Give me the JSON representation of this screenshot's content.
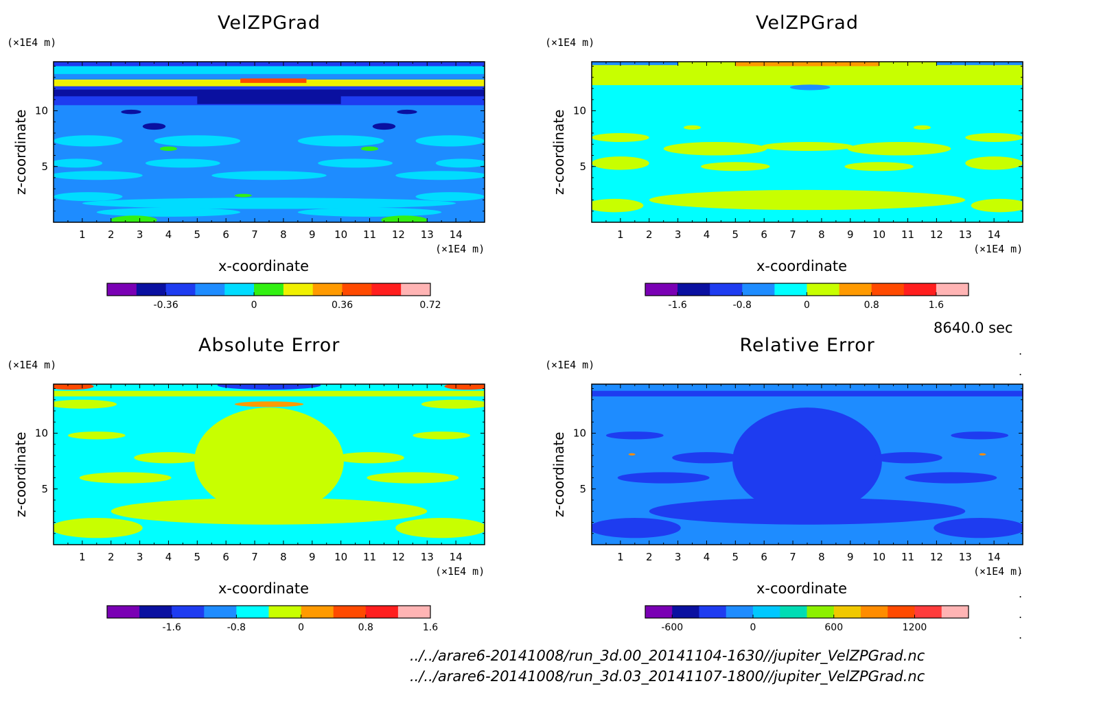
{
  "figure": {
    "time_label": "8640.0 sec",
    "files": [
      "../../arare6-20141008/run_3d.00_20141104-1630//jupiter_VelZPGrad.nc",
      "../../arare6-20141008/run_3d.03_20141107-1800//jupiter_VelZPGrad.nc"
    ]
  },
  "chart_data": [
    {
      "type": "heatmap",
      "title": "VelZPGrad",
      "xlabel": "x-coordinate",
      "ylabel": "z-coordinate",
      "xunit": "(×1E4 m)",
      "yunit": "(×1E4 m)",
      "xlim": [
        0,
        15
      ],
      "ylim": [
        0,
        14.4
      ],
      "xticks": [
        1,
        2,
        3,
        4,
        5,
        6,
        7,
        8,
        9,
        10,
        11,
        12,
        13,
        14
      ],
      "yticks": [
        5,
        10
      ],
      "colorbar": {
        "colors": [
          "#7a00b4",
          "#0a10a0",
          "#1e3cf0",
          "#1e8cff",
          "#00dcff",
          "#32f012",
          "#f0f000",
          "#ff9a00",
          "#ff4a00",
          "#ff1e1e",
          "#ffb4b4"
        ],
        "ticks": [
          {
            "label": "-0.36",
            "index": 1
          },
          {
            "label": "0",
            "index": 4
          },
          {
            "label": "0.36",
            "index": 7
          },
          {
            "label": "0.72",
            "index": 10
          }
        ]
      },
      "background_level": 3,
      "layers": [
        {
          "level": 2,
          "rects": [
            [
              0,
              10.5,
              15,
              12.3
            ]
          ]
        },
        {
          "level": 1,
          "rects": [
            [
              0,
              11.3,
              15,
              11.9
            ],
            [
              5,
              10.6,
              10,
              11.9
            ]
          ]
        },
        {
          "level": 1,
          "ellipses": [
            [
              2.7,
              9.9,
              0.35,
              0.2
            ],
            [
              12.3,
              9.9,
              0.35,
              0.2
            ],
            [
              3.5,
              8.6,
              0.4,
              0.3
            ],
            [
              11.5,
              8.6,
              0.4,
              0.3
            ]
          ]
        },
        {
          "level": 4,
          "rects": [
            [
              0,
              13.3,
              15,
              14.0
            ]
          ]
        },
        {
          "level": 6,
          "rects": [
            [
              0,
              12.2,
              15,
              12.8
            ]
          ]
        },
        {
          "level": 8,
          "rects": [
            [
              6.5,
              12.5,
              8.8,
              12.9
            ]
          ]
        },
        {
          "level": 2,
          "rects": [
            [
              0,
              14.0,
              15,
              14.4
            ]
          ]
        },
        {
          "level": 4,
          "ellipses": [
            [
              1.2,
              7.3,
              1.2,
              0.5
            ],
            [
              5.0,
              7.3,
              1.5,
              0.5
            ],
            [
              10.0,
              7.3,
              1.5,
              0.5
            ],
            [
              13.8,
              7.3,
              1.2,
              0.5
            ],
            [
              0.8,
              5.3,
              0.9,
              0.4
            ],
            [
              4.5,
              5.3,
              1.3,
              0.4
            ],
            [
              10.5,
              5.3,
              1.3,
              0.4
            ],
            [
              14.2,
              5.3,
              0.9,
              0.4
            ],
            [
              1.5,
              4.2,
              1.6,
              0.4
            ],
            [
              7.5,
              4.2,
              2.0,
              0.4
            ],
            [
              13.5,
              4.2,
              1.6,
              0.4
            ],
            [
              7.5,
              1.7,
              6.5,
              0.5
            ],
            [
              1.2,
              2.3,
              1.2,
              0.4
            ],
            [
              13.8,
              2.3,
              1.2,
              0.4
            ],
            [
              4.0,
              0.9,
              2.5,
              0.4
            ],
            [
              11.0,
              0.9,
              2.5,
              0.4
            ]
          ]
        },
        {
          "level": 5,
          "ellipses": [
            [
              2.8,
              0.2,
              0.8,
              0.4
            ],
            [
              12.2,
              0.2,
              0.8,
              0.4
            ],
            [
              4.0,
              6.6,
              0.3,
              0.2
            ],
            [
              11.0,
              6.6,
              0.3,
              0.2
            ],
            [
              6.6,
              2.4,
              0.3,
              0.15
            ]
          ]
        }
      ]
    },
    {
      "type": "heatmap",
      "title": "VelZPGrad",
      "xlabel": "x-coordinate",
      "ylabel": "z-coordinate",
      "xunit": "(×1E4 m)",
      "yunit": "(×1E4 m)",
      "xlim": [
        0,
        15
      ],
      "ylim": [
        0,
        14.4
      ],
      "xticks": [
        1,
        2,
        3,
        4,
        5,
        6,
        7,
        8,
        9,
        10,
        11,
        12,
        13,
        14
      ],
      "yticks": [
        5,
        10
      ],
      "colorbar": {
        "colors": [
          "#7a00b4",
          "#0a10a0",
          "#1e3cf0",
          "#1e8cff",
          "#00ffff",
          "#c8ff00",
          "#ff9a00",
          "#ff4a00",
          "#ff1e1e",
          "#ffb4b4"
        ],
        "ticks": [
          {
            "label": "-1.6",
            "index": 0
          },
          {
            "label": "-0.8",
            "index": 2
          },
          {
            "label": "0",
            "index": 4
          },
          {
            "label": "0.8",
            "index": 6
          },
          {
            "label": "1.6",
            "index": 8
          }
        ]
      },
      "background_level": 4,
      "layers": [
        {
          "level": 5,
          "rects": [
            [
              0,
              12.3,
              15,
              14.4
            ]
          ]
        },
        {
          "level": 6,
          "rects": [
            [
              5,
              14.0,
              10,
              14.4
            ]
          ]
        },
        {
          "level": 3,
          "rects": [
            [
              0,
              14.1,
              3,
              14.4
            ],
            [
              12,
              14.1,
              15,
              14.4
            ]
          ]
        },
        {
          "level": 3,
          "ellipses": [
            [
              7.6,
              12.1,
              0.7,
              0.25
            ]
          ]
        },
        {
          "level": 5,
          "ellipses": [
            [
              1.0,
              7.6,
              1.0,
              0.4
            ],
            [
              4.3,
              6.6,
              1.8,
              0.6
            ],
            [
              10.7,
              6.6,
              1.8,
              0.6
            ],
            [
              14.0,
              7.6,
              1.0,
              0.4
            ],
            [
              7.5,
              6.8,
              1.6,
              0.4
            ],
            [
              1.0,
              5.3,
              1.0,
              0.6
            ],
            [
              14.0,
              5.3,
              1.0,
              0.6
            ],
            [
              5.0,
              5.0,
              1.2,
              0.4
            ],
            [
              10.0,
              5.0,
              1.2,
              0.4
            ],
            [
              7.5,
              2.0,
              5.5,
              0.9
            ],
            [
              0.8,
              1.5,
              1.0,
              0.6
            ],
            [
              14.2,
              1.5,
              1.0,
              0.6
            ],
            [
              3.5,
              8.5,
              0.3,
              0.2
            ],
            [
              11.5,
              8.5,
              0.3,
              0.2
            ]
          ]
        }
      ]
    },
    {
      "type": "heatmap",
      "title": "Absolute Error",
      "xlabel": "x-coordinate",
      "ylabel": "z-coordinate",
      "xunit": "(×1E4 m)",
      "yunit": "(×1E4 m)",
      "xlim": [
        0,
        15
      ],
      "ylim": [
        0,
        14.4
      ],
      "xticks": [
        1,
        2,
        3,
        4,
        5,
        6,
        7,
        8,
        9,
        10,
        11,
        12,
        13,
        14
      ],
      "yticks": [
        5,
        10
      ],
      "colorbar": {
        "colors": [
          "#7a00b4",
          "#0a10a0",
          "#1e3cf0",
          "#1e8cff",
          "#00ffff",
          "#c8ff00",
          "#ff9a00",
          "#ff4a00",
          "#ff1e1e",
          "#ffb4b4"
        ],
        "ticks": [
          {
            "label": "-1.6",
            "index": 1
          },
          {
            "label": "-0.8",
            "index": 3
          },
          {
            "label": "0",
            "index": 5
          },
          {
            "label": "0.8",
            "index": 7
          },
          {
            "label": "1.6",
            "index": 9
          }
        ]
      },
      "background_level": 4,
      "layers": [
        {
          "level": 5,
          "ellipses": [
            [
              7.5,
              7.5,
              2.6,
              4.8
            ],
            [
              7.5,
              3.0,
              5.5,
              1.2
            ],
            [
              1.5,
              1.5,
              1.6,
              0.9
            ],
            [
              13.5,
              1.5,
              1.6,
              0.9
            ],
            [
              2.5,
              6.0,
              1.6,
              0.5
            ],
            [
              12.5,
              6.0,
              1.6,
              0.5
            ],
            [
              4.0,
              7.8,
              1.2,
              0.5
            ],
            [
              11.0,
              7.8,
              1.2,
              0.5
            ],
            [
              1.0,
              12.6,
              1.2,
              0.4
            ],
            [
              14.0,
              12.6,
              1.2,
              0.4
            ],
            [
              1.5,
              9.8,
              1.0,
              0.35
            ],
            [
              13.5,
              9.8,
              1.0,
              0.35
            ]
          ]
        },
        {
          "level": 5,
          "rects": [
            [
              0,
              13.3,
              15,
              13.8
            ]
          ]
        },
        {
          "level": 6,
          "ellipses": [
            [
              7.5,
              12.6,
              1.2,
              0.25
            ]
          ]
        },
        {
          "level": 2,
          "ellipses": [
            [
              7.5,
              14.3,
              1.8,
              0.4
            ]
          ]
        },
        {
          "level": 7,
          "ellipses": [
            [
              0.6,
              14.2,
              0.8,
              0.3
            ],
            [
              14.4,
              14.2,
              0.8,
              0.3
            ]
          ]
        }
      ]
    },
    {
      "type": "heatmap",
      "title": "Relative Error",
      "xlabel": "x-coordinate",
      "ylabel": "z-coordinate",
      "xunit": "(×1E4 m)",
      "yunit": "(×1E4 m)",
      "xlim": [
        0,
        15
      ],
      "ylim": [
        0,
        14.4
      ],
      "xticks": [
        1,
        2,
        3,
        4,
        5,
        6,
        7,
        8,
        9,
        10,
        11,
        12,
        13,
        14
      ],
      "yticks": [
        5,
        10
      ],
      "colorbar": {
        "colors": [
          "#7a00b4",
          "#0a10a0",
          "#1e3cf0",
          "#1e8cff",
          "#00c8ff",
          "#00dcb4",
          "#8cf000",
          "#f0c800",
          "#ff8c00",
          "#ff4a00",
          "#ff3c3c",
          "#ffb4b4"
        ],
        "ticks": [
          {
            "label": "-600",
            "index": 0
          },
          {
            "label": "0",
            "index": 3
          },
          {
            "label": "600",
            "index": 6
          },
          {
            "label": "1200",
            "index": 9
          }
        ]
      },
      "background_level": 3,
      "layers": [
        {
          "level": 2,
          "ellipses": [
            [
              7.5,
              7.5,
              2.6,
              4.8
            ],
            [
              7.5,
              3.0,
              5.5,
              1.2
            ],
            [
              1.5,
              1.5,
              1.6,
              0.9
            ],
            [
              13.5,
              1.5,
              1.6,
              0.9
            ],
            [
              2.5,
              6.0,
              1.6,
              0.5
            ],
            [
              12.5,
              6.0,
              1.6,
              0.5
            ],
            [
              4.0,
              7.8,
              1.2,
              0.5
            ],
            [
              11.0,
              7.8,
              1.2,
              0.5
            ],
            [
              1.5,
              9.8,
              1.0,
              0.35
            ],
            [
              13.5,
              9.8,
              1.0,
              0.35
            ]
          ]
        },
        {
          "level": 2,
          "rects": [
            [
              0,
              13.3,
              15,
              13.8
            ]
          ]
        },
        {
          "level": 8,
          "ellipses": [
            [
              1.4,
              8.1,
              0.12,
              0.1
            ],
            [
              13.6,
              8.1,
              0.12,
              0.1
            ]
          ]
        }
      ]
    }
  ]
}
